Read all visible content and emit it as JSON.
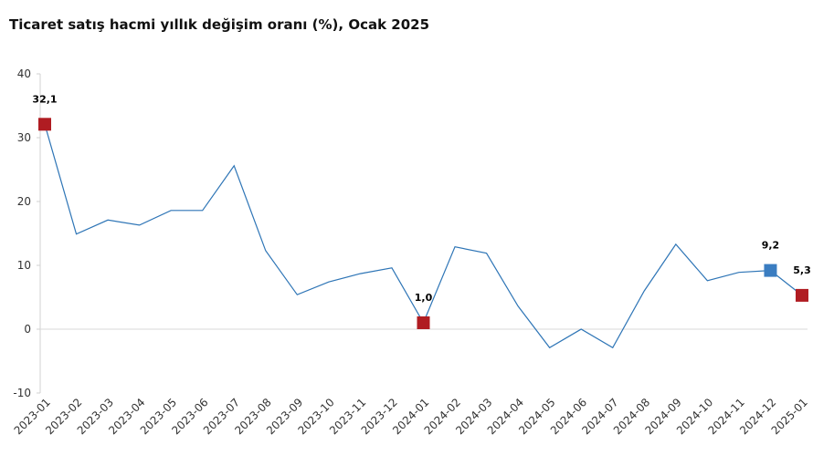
{
  "chart_data": {
    "type": "line",
    "title": "Ticaret satış hacmi yıllık değişim oranı (%), Ocak 2025",
    "categories": [
      "2023-01",
      "2023-02",
      "2023-03",
      "2023-04",
      "2023-05",
      "2023-06",
      "2023-07",
      "2023-08",
      "2023-09",
      "2023-10",
      "2023-11",
      "2023-12",
      "2024-01",
      "2024-02",
      "2024-03",
      "2024-04",
      "2024-05",
      "2024-06",
      "2024-07",
      "2024-08",
      "2024-09",
      "2024-10",
      "2024-11",
      "2024-12",
      "2025-01"
    ],
    "series": [
      {
        "color": "#2e75b6",
        "values": [
          32.1,
          14.9,
          17.1,
          16.3,
          18.6,
          18.6,
          25.6,
          12.3,
          5.4,
          7.4,
          8.7,
          9.6,
          1.0,
          12.9,
          11.9,
          3.6,
          -2.9,
          0.0,
          -2.9,
          6.0,
          13.3,
          7.6,
          8.9,
          9.2,
          5.3
        ],
        "value_labels": [
          "32,1",
          null,
          null,
          null,
          null,
          null,
          null,
          null,
          null,
          null,
          null,
          null,
          "1,0",
          null,
          null,
          null,
          null,
          null,
          null,
          null,
          null,
          null,
          null,
          "9,2",
          "5,3"
        ],
        "marker_colors": [
          "#b01c22",
          null,
          null,
          null,
          null,
          null,
          null,
          null,
          null,
          null,
          null,
          null,
          "#b01c22",
          null,
          null,
          null,
          null,
          null,
          null,
          null,
          null,
          null,
          null,
          "#3a7dc1",
          "#b01c22"
        ]
      }
    ],
    "ylim": [
      -10,
      40
    ],
    "yticks": [
      -10,
      0,
      10,
      20,
      30,
      40
    ]
  }
}
